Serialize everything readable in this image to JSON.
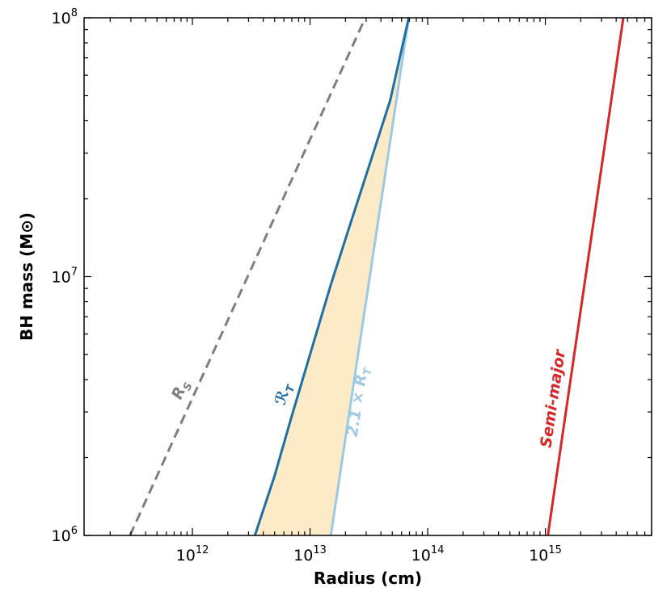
{
  "chart_data": {
    "type": "line",
    "title": "",
    "xlabel": "Radius (cm)",
    "ylabel": "BH mass (M⊙)",
    "xscale": "log",
    "yscale": "log",
    "xlim": [
      120000000000.0,
      8000000000000000.0
    ],
    "ylim": [
      1000000.0,
      100000000.0
    ],
    "grid": false,
    "legend": "none",
    "x_ticks": [
      {
        "value": 1000000000000.0,
        "base": "10",
        "exp": "12"
      },
      {
        "value": 10000000000000.0,
        "base": "10",
        "exp": "13"
      },
      {
        "value": 100000000000000.0,
        "base": "10",
        "exp": "14"
      },
      {
        "value": 1000000000000000.0,
        "base": "10",
        "exp": "15"
      }
    ],
    "y_ticks": [
      {
        "value": 1000000.0,
        "base": "10",
        "exp": "6"
      },
      {
        "value": 10000000.0,
        "base": "10",
        "exp": "7"
      },
      {
        "value": 100000000.0,
        "base": "10",
        "exp": "8"
      }
    ],
    "series": [
      {
        "key": "rs",
        "name": "R",
        "name_sub": "S",
        "color": "#7f7f7f",
        "dash": "dashed",
        "x": [
          295000000000.0,
          29500000000000.0
        ],
        "y": [
          1000000.0,
          100000000.0
        ]
      },
      {
        "key": "rt",
        "name": "ℛ",
        "name_sub": "T",
        "color": "#1f6fa6",
        "dash": "solid",
        "x": [
          3400000000000.0,
          5000000000000.0,
          7000000000000.0,
          10000000000000.0,
          15000000000000.0,
          22000000000000.0,
          32000000000000.0,
          48000000000000.0,
          69000000000000.0
        ],
        "y": [
          1000000.0,
          1700000.0,
          2900000.0,
          5000000.0,
          9300000.0,
          16000000.0,
          27000000.0,
          48000000.0,
          100000000.0
        ]
      },
      {
        "key": "rt21",
        "name": "2.1 × R",
        "name_sub": "T",
        "color": "#9ec9e2",
        "dash": "solid",
        "x": [
          15000000000000.0,
          69000000000000.0
        ],
        "y": [
          1000000.0,
          100000000.0
        ]
      },
      {
        "key": "semi",
        "name": "Semi-major",
        "name_sub": "",
        "color": "#d62728",
        "dash": "solid",
        "x": [
          1050000000000000.0,
          4600000000000000.0
        ],
        "y": [
          1000000.0,
          100000000.0
        ]
      }
    ],
    "fill_between": {
      "lower_series": "rt",
      "upper_series": "rt21",
      "color": "#fdebc8"
    }
  }
}
